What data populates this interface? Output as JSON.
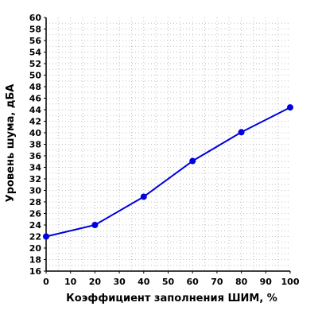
{
  "chart_data": {
    "type": "line",
    "title": "",
    "xlabel": "Коэффициент заполнения ШИМ, %",
    "ylabel": "Уровень шума, дБА",
    "xlim": [
      0,
      100
    ],
    "ylim": [
      16,
      60
    ],
    "x_ticks": [
      "0",
      "10",
      "20",
      "30",
      "40",
      "50",
      "60",
      "70",
      "80",
      "90",
      "100"
    ],
    "y_ticks": [
      "16",
      "18",
      "20",
      "22",
      "24",
      "26",
      "28",
      "30",
      "32",
      "34",
      "36",
      "38",
      "40",
      "42",
      "44",
      "46",
      "48",
      "50",
      "52",
      "54",
      "56",
      "58",
      "60"
    ],
    "grid": true,
    "legend": "none",
    "series": [
      {
        "x": [
          0,
          20,
          40,
          60,
          80,
          100
        ],
        "values": [
          22,
          24,
          28.9,
          35.1,
          40.1,
          44.4
        ],
        "color": "#0000e0"
      }
    ],
    "colors": {
      "line": "#0000e0",
      "marker": "#0000e0",
      "grid": "#c0c0c0",
      "axis": "#000000"
    }
  }
}
